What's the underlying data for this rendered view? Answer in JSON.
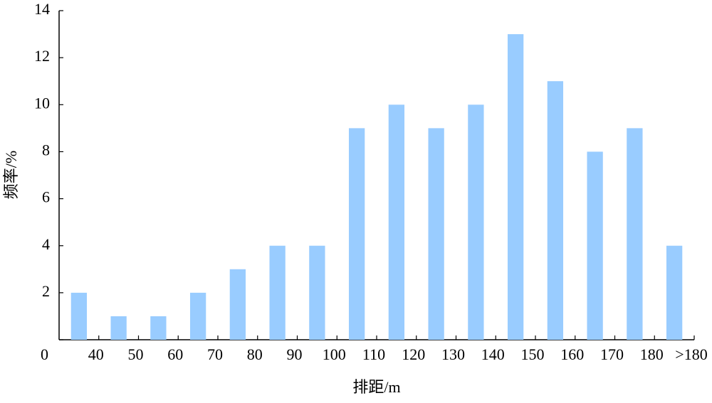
{
  "chart_data": {
    "type": "bar",
    "x_label": "排距/m",
    "y_label": "频率/%",
    "categories": [
      "40",
      "50",
      "60",
      "70",
      "80",
      "90",
      "100",
      "110",
      "120",
      "130",
      "140",
      "150",
      "160",
      "170",
      "180",
      ">180"
    ],
    "values": [
      2,
      1,
      1,
      2,
      3,
      4,
      4,
      9,
      10,
      9,
      10,
      13,
      11,
      8,
      9,
      4
    ],
    "color": "#99ccff",
    "ylim": [
      0,
      14
    ],
    "yticks": [
      0,
      2,
      4,
      6,
      8,
      10,
      12,
      14
    ],
    "grid": false
  }
}
